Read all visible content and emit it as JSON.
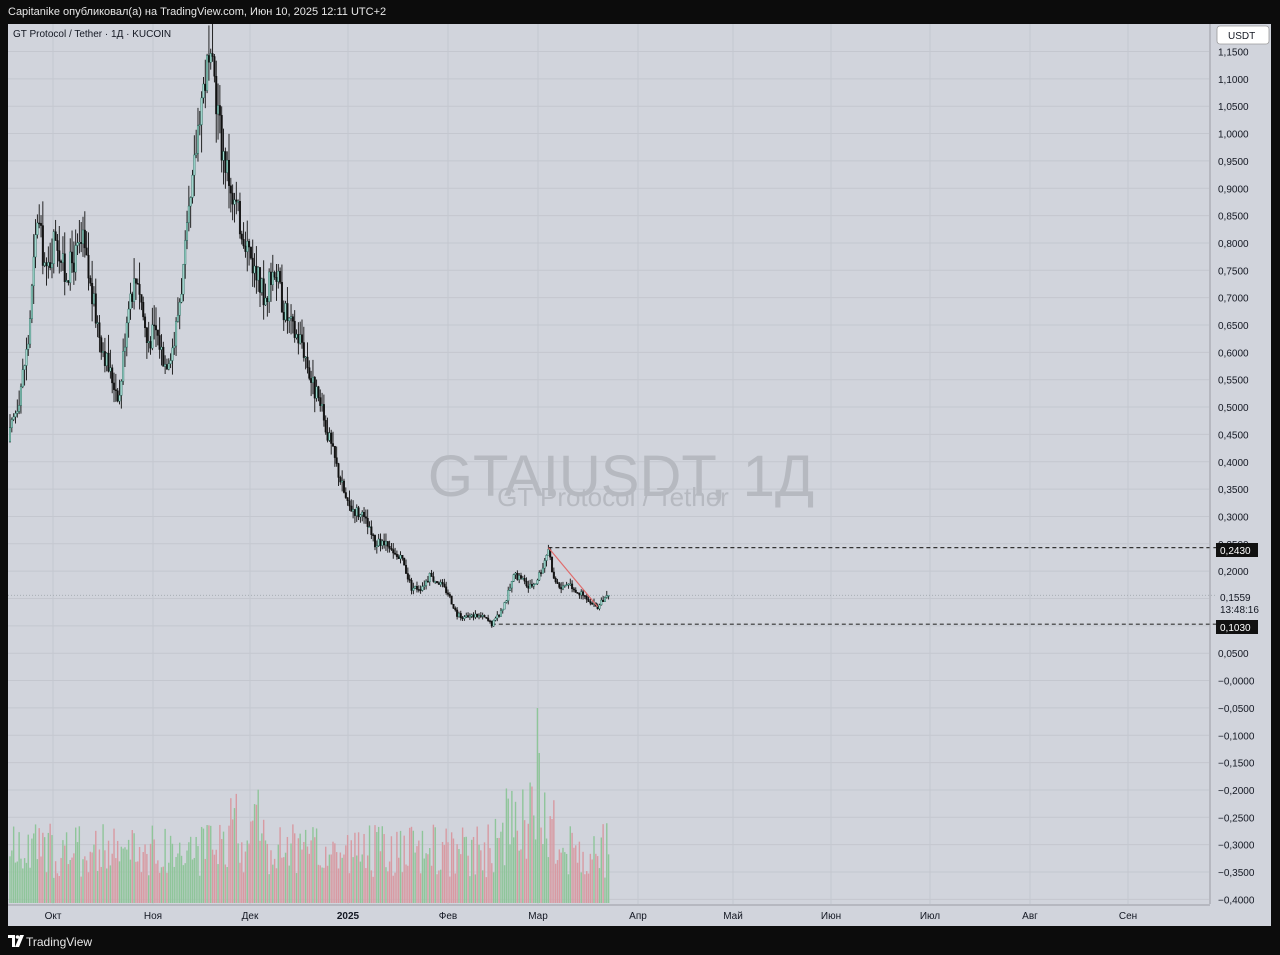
{
  "header": {
    "publish_line": "Capitanike опубликовал(а) на TradingView.com, Июн 10, 2025 12:11 UTC+2"
  },
  "chart": {
    "symbol_line": "GT Protocol / Tether · 1Д · KUCOIN",
    "watermark_symbol": "GTAIUSDT, 1Д",
    "watermark_name": "GT Protocol / Tether",
    "currency_button": "USDT",
    "last_price_label": "0,1559",
    "countdown_label": "13:48:16",
    "level_high_label": "0,2430",
    "level_low_label": "0,1030"
  },
  "footer": {
    "brand": "TradingView"
  },
  "colors": {
    "background": "#d1d4dc",
    "up_candle": "#9fd8cd",
    "down_candle": "#111111",
    "up_volume": "#8fc59a",
    "down_volume": "#d89aa2",
    "trendline": "#e06c6c",
    "dashed_level": "#333333"
  },
  "chart_data": {
    "type": "candlestick",
    "series": [
      {
        "name": "GTAIUSDT"
      }
    ],
    "y_ticks": [
      "1,1500",
      "1,1000",
      "1,0500",
      "1,0000",
      "0,9500",
      "0,9000",
      "0,8500",
      "0,8000",
      "0,7500",
      "0,7000",
      "0,6500",
      "0,6000",
      "0,5500",
      "0,5000",
      "0,4500",
      "0,4000",
      "0,3500",
      "0,3000",
      "0,2500",
      "0,2000",
      "0,1500",
      "0,1000",
      "0,0500",
      "−0,0000",
      "−0,0500",
      "−0,1000",
      "−0,1500",
      "−0,2000",
      "−0,2500",
      "−0,3000",
      "−0,3500",
      "−0,4000"
    ],
    "ylim": [
      -0.4,
      1.15
    ],
    "x_ticks": [
      "Окт",
      "Ноя",
      "Дек",
      "2025",
      "Фев",
      "Мар",
      "Апр",
      "Май",
      "Июн",
      "Июл",
      "Авг",
      "Сен"
    ],
    "close_anchors": [
      [
        0,
        0.45
      ],
      [
        5,
        0.52
      ],
      [
        10,
        0.62
      ],
      [
        15,
        0.85
      ],
      [
        20,
        0.74
      ],
      [
        25,
        0.82
      ],
      [
        30,
        0.74
      ],
      [
        35,
        0.77
      ],
      [
        40,
        0.8
      ],
      [
        45,
        0.7
      ],
      [
        50,
        0.62
      ],
      [
        55,
        0.56
      ],
      [
        60,
        0.52
      ],
      [
        65,
        0.7
      ],
      [
        70,
        0.74
      ],
      [
        75,
        0.62
      ],
      [
        80,
        0.64
      ],
      [
        85,
        0.58
      ],
      [
        90,
        0.62
      ],
      [
        95,
        0.75
      ],
      [
        100,
        0.9
      ],
      [
        104,
        1.05
      ],
      [
        108,
        1.12
      ],
      [
        112,
        1.1
      ],
      [
        116,
        0.98
      ],
      [
        120,
        0.92
      ],
      [
        125,
        0.85
      ],
      [
        130,
        0.8
      ],
      [
        135,
        0.74
      ],
      [
        140,
        0.7
      ],
      [
        145,
        0.76
      ],
      [
        150,
        0.68
      ],
      [
        155,
        0.64
      ],
      [
        160,
        0.62
      ],
      [
        165,
        0.55
      ],
      [
        170,
        0.5
      ],
      [
        175,
        0.44
      ],
      [
        180,
        0.38
      ],
      [
        185,
        0.32
      ],
      [
        190,
        0.31
      ],
      [
        195,
        0.29
      ],
      [
        200,
        0.25
      ],
      [
        205,
        0.25
      ],
      [
        210,
        0.23
      ],
      [
        215,
        0.22
      ],
      [
        220,
        0.17
      ],
      [
        225,
        0.17
      ],
      [
        230,
        0.19
      ],
      [
        235,
        0.18
      ],
      [
        240,
        0.16
      ],
      [
        245,
        0.12
      ],
      [
        250,
        0.115
      ],
      [
        255,
        0.12
      ],
      [
        260,
        0.115
      ],
      [
        264,
        0.103
      ],
      [
        268,
        0.12
      ],
      [
        272,
        0.15
      ],
      [
        276,
        0.19
      ],
      [
        280,
        0.19
      ],
      [
        284,
        0.17
      ],
      [
        288,
        0.18
      ],
      [
        292,
        0.21
      ],
      [
        295,
        0.243
      ],
      [
        298,
        0.185
      ],
      [
        302,
        0.17
      ],
      [
        306,
        0.18
      ],
      [
        310,
        0.165
      ],
      [
        314,
        0.155
      ],
      [
        318,
        0.14
      ],
      [
        322,
        0.135
      ],
      [
        326,
        0.15
      ],
      [
        328,
        0.1559
      ]
    ],
    "x_range": [
      0,
      465
    ],
    "levels": {
      "high": 0.243,
      "low": 0.103,
      "last": 0.1559
    },
    "trendline": [
      [
        295,
        0.243
      ],
      [
        322,
        0.135
      ]
    ],
    "volume": true
  }
}
